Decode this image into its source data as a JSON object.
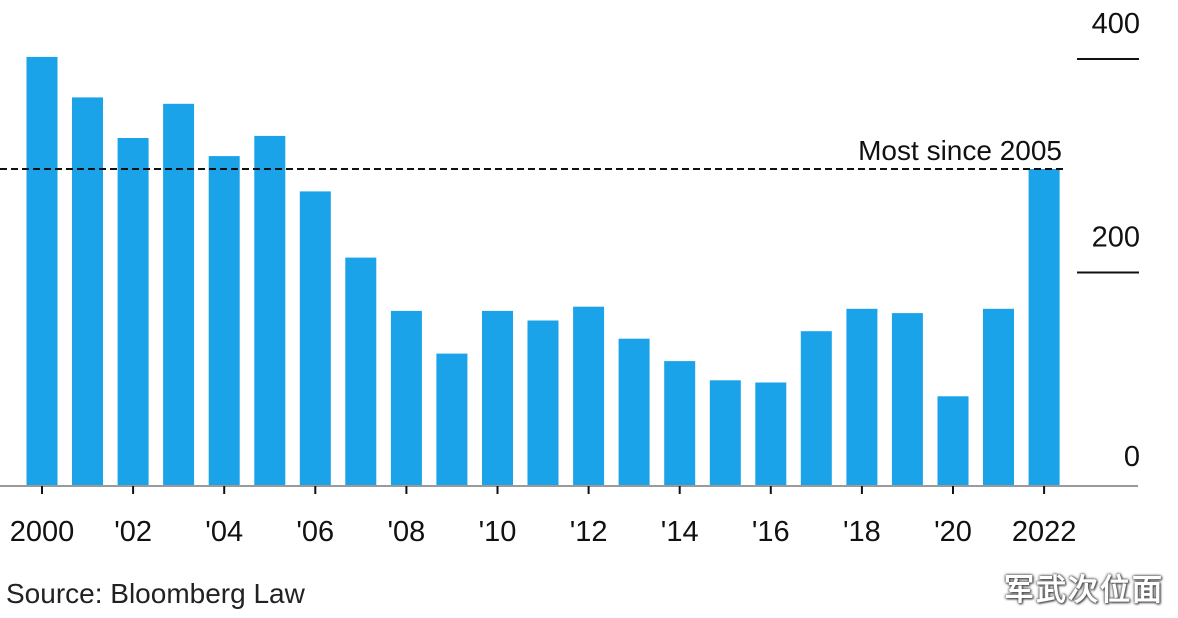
{
  "chart_data": {
    "type": "bar",
    "categories": [
      "2000",
      "2001",
      "2002",
      "2003",
      "2004",
      "2005",
      "2006",
      "2007",
      "2008",
      "2009",
      "2010",
      "2011",
      "2012",
      "2013",
      "2014",
      "2015",
      "2016",
      "2017",
      "2018",
      "2019",
      "2020",
      "2021",
      "2022"
    ],
    "values": [
      402,
      364,
      326,
      358,
      309,
      328,
      276,
      214,
      164,
      124,
      164,
      155,
      168,
      138,
      117,
      99,
      97,
      145,
      166,
      162,
      84,
      166,
      297
    ],
    "x_tick_labels": [
      {
        "category": "2000",
        "label": "2000"
      },
      {
        "category": "2002",
        "label": "'02"
      },
      {
        "category": "2004",
        "label": "'04"
      },
      {
        "category": "2006",
        "label": "'06"
      },
      {
        "category": "2008",
        "label": "'08"
      },
      {
        "category": "2010",
        "label": "'10"
      },
      {
        "category": "2012",
        "label": "'12"
      },
      {
        "category": "2014",
        "label": "'14"
      },
      {
        "category": "2016",
        "label": "'16"
      },
      {
        "category": "2018",
        "label": "'18"
      },
      {
        "category": "2020",
        "label": "'20"
      },
      {
        "category": "2022",
        "label": "2022"
      }
    ],
    "y_ticks": [
      {
        "value": 400,
        "label": "400"
      },
      {
        "value": 200,
        "label": "200"
      },
      {
        "value": 0,
        "label": "0"
      }
    ],
    "ylim": [
      0,
      430
    ],
    "reference_line": {
      "value": 297,
      "label": "Most since 2005",
      "style": "dashed"
    },
    "bar_color": "#1aa3e8",
    "axis_position": "right",
    "grid": false
  },
  "footer": {
    "source": "Source: Bloomberg Law",
    "watermark": "军武次位面"
  }
}
